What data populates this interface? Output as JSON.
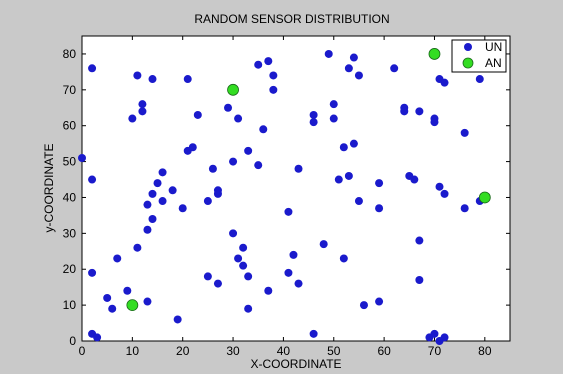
{
  "figure": {
    "background": "#c9c9c9",
    "axes_background": "#ffffff"
  },
  "chart_data": {
    "type": "scatter",
    "title": "RANDOM SENSOR DISTRIBUTION",
    "xlabel": "X-COORDINATE",
    "ylabel": "y-COORDINATE",
    "xlim": [
      0,
      85
    ],
    "ylim": [
      0,
      85
    ],
    "xticks": [
      0,
      10,
      20,
      30,
      40,
      50,
      60,
      70,
      80
    ],
    "yticks": [
      0,
      10,
      20,
      30,
      40,
      50,
      60,
      70,
      80
    ],
    "grid": false,
    "legend_position": "top-right",
    "series": [
      {
        "name": "UN",
        "color": "#1a1acc",
        "marker": "circle",
        "points": [
          [
            2,
            76
          ],
          [
            11,
            74
          ],
          [
            14,
            73
          ],
          [
            21,
            73
          ],
          [
            12,
            66
          ],
          [
            12,
            64
          ],
          [
            10,
            62
          ],
          [
            23,
            63
          ],
          [
            31,
            62
          ],
          [
            29,
            65
          ],
          [
            35,
            77
          ],
          [
            37,
            78
          ],
          [
            38,
            74
          ],
          [
            38,
            70
          ],
          [
            49,
            80
          ],
          [
            53,
            76
          ],
          [
            54,
            79
          ],
          [
            55,
            74
          ],
          [
            62,
            76
          ],
          [
            64,
            65
          ],
          [
            64,
            64
          ],
          [
            67,
            64
          ],
          [
            70,
            62
          ],
          [
            70,
            61
          ],
          [
            71,
            73
          ],
          [
            72,
            72
          ],
          [
            79,
            73
          ],
          [
            76,
            58
          ],
          [
            46,
            63
          ],
          [
            46,
            61
          ],
          [
            50,
            66
          ],
          [
            50,
            62
          ],
          [
            52,
            54
          ],
          [
            54,
            55
          ],
          [
            36,
            59
          ],
          [
            35,
            49
          ],
          [
            33,
            53
          ],
          [
            30,
            50
          ],
          [
            22,
            54
          ],
          [
            21,
            53
          ],
          [
            16,
            47
          ],
          [
            15,
            44
          ],
          [
            14,
            41
          ],
          [
            16,
            39
          ],
          [
            13,
            38
          ],
          [
            14,
            34
          ],
          [
            13,
            31
          ],
          [
            11,
            26
          ],
          [
            7,
            23
          ],
          [
            18,
            42
          ],
          [
            20,
            37
          ],
          [
            25,
            39
          ],
          [
            26,
            48
          ],
          [
            27,
            42
          ],
          [
            27,
            41
          ],
          [
            0,
            51
          ],
          [
            2,
            45
          ],
          [
            2,
            19
          ],
          [
            2,
            2
          ],
          [
            3,
            1
          ],
          [
            5,
            12
          ],
          [
            6,
            9
          ],
          [
            9,
            14
          ],
          [
            13,
            11
          ],
          [
            19,
            6
          ],
          [
            25,
            18
          ],
          [
            27,
            16
          ],
          [
            30,
            30
          ],
          [
            31,
            23
          ],
          [
            32,
            26
          ],
          [
            32,
            21
          ],
          [
            33,
            18
          ],
          [
            33,
            9
          ],
          [
            37,
            14
          ],
          [
            41,
            19
          ],
          [
            42,
            24
          ],
          [
            43,
            16
          ],
          [
            41,
            36
          ],
          [
            43,
            48
          ],
          [
            48,
            27
          ],
          [
            51,
            45
          ],
          [
            52,
            23
          ],
          [
            53,
            46
          ],
          [
            55,
            39
          ],
          [
            56,
            10
          ],
          [
            59,
            44
          ],
          [
            59,
            37
          ],
          [
            59,
            11
          ],
          [
            65,
            46
          ],
          [
            66,
            45
          ],
          [
            67,
            28
          ],
          [
            67,
            17
          ],
          [
            69,
            1
          ],
          [
            70,
            2
          ],
          [
            71,
            0
          ],
          [
            72,
            1
          ],
          [
            71,
            43
          ],
          [
            72,
            41
          ],
          [
            76,
            37
          ],
          [
            46,
            2
          ],
          [
            79,
            39
          ]
        ]
      },
      {
        "name": "AN",
        "color": "#33dd22",
        "marker": "circle",
        "points": [
          [
            10,
            10
          ],
          [
            30,
            70
          ],
          [
            70,
            80
          ],
          [
            80,
            40
          ]
        ]
      }
    ]
  }
}
